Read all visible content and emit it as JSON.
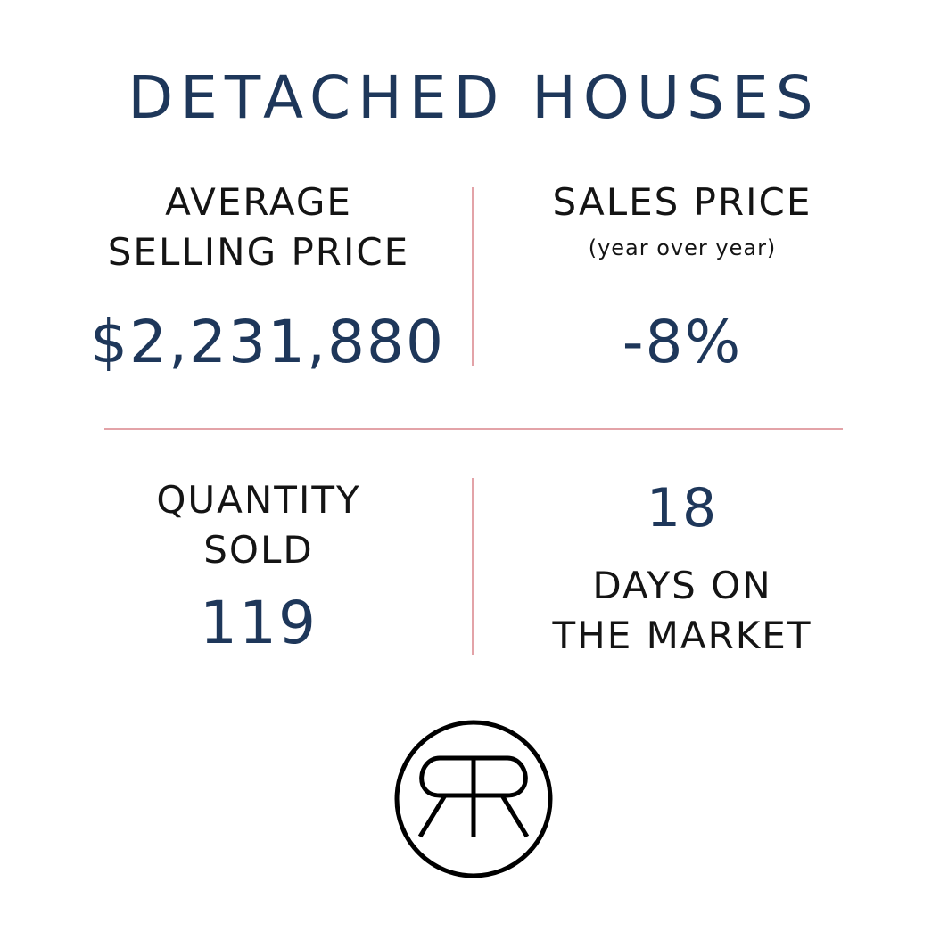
{
  "title": "DETACHED HOUSES",
  "stats": {
    "avg_price": {
      "label_line1": "AVERAGE",
      "label_line2": "SELLING PRICE",
      "value": "$2,231,880"
    },
    "sales_price": {
      "label": "SALES PRICE",
      "sublabel": "(year over year)",
      "value": "-8%"
    },
    "quantity": {
      "label_line1": "QUANTITY",
      "label_line2": "SOLD",
      "value": "119"
    },
    "days": {
      "value": "18",
      "label_line1": "DAYS ON",
      "label_line2": "THE MARKET"
    }
  },
  "logo": {
    "icon": "rr-monogram-logo",
    "text": "RR"
  },
  "colors": {
    "navy": "#1e375a",
    "divider": "#e3a3a8",
    "text": "#141414"
  }
}
